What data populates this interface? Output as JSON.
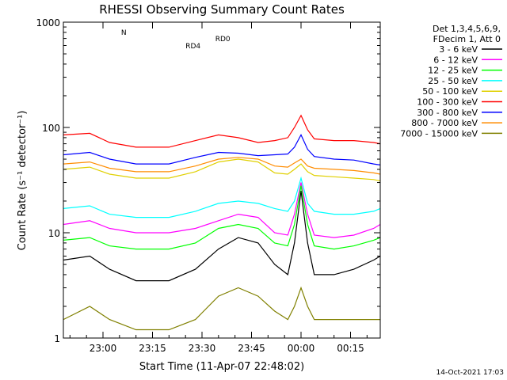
{
  "chart_data": {
    "type": "line",
    "title": "RHESSI Observing Summary Count Rates",
    "xlabel": "Start Time (11-Apr-07 22:48:02)",
    "ylabel": "Count Rate (s⁻¹ detector⁻¹)",
    "y_scale": "log",
    "ylim": [
      1,
      1000
    ],
    "x_units": "minutes after 22:48:02",
    "xlim": [
      0,
      96
    ],
    "x_ticks": [
      {
        "t": 12,
        "label": "23:00"
      },
      {
        "t": 27,
        "label": "23:15"
      },
      {
        "t": 42,
        "label": "23:30"
      },
      {
        "t": 57,
        "label": "23:45"
      },
      {
        "t": 72,
        "label": "00:00"
      },
      {
        "t": 87,
        "label": "00:15"
      }
    ],
    "y_ticks": [
      {
        "v": 1,
        "label": "1"
      },
      {
        "v": 10,
        "label": "10"
      },
      {
        "v": 100,
        "label": "100"
      },
      {
        "v": 1000,
        "label": "1000"
      }
    ],
    "legend_header": [
      "Det 1,3,4,5,6,9,",
      "FDecim 1, Att 0"
    ],
    "legend_position": "right",
    "series": [
      {
        "name": "3 - 6 keV",
        "color": "#000000",
        "x": [
          0,
          8,
          14,
          22,
          32,
          40,
          47,
          53,
          59,
          64,
          68,
          70,
          72,
          74,
          76,
          82,
          88,
          94,
          96
        ],
        "y": [
          5.5,
          6,
          4.5,
          3.5,
          3.5,
          4.5,
          7,
          9,
          8,
          5,
          4,
          8,
          25,
          8,
          4,
          4,
          4.5,
          5.5,
          6
        ]
      },
      {
        "name": "6 - 12 keV",
        "color": "#ff00ff",
        "x": [
          0,
          8,
          14,
          22,
          32,
          40,
          47,
          53,
          59,
          64,
          68,
          70,
          72,
          74,
          76,
          82,
          88,
          94,
          96
        ],
        "y": [
          12,
          13,
          11,
          10,
          10,
          11,
          13,
          15,
          14,
          10,
          9.5,
          15,
          30,
          15,
          9.5,
          9,
          9.5,
          11,
          12
        ]
      },
      {
        "name": "12 - 25 keV",
        "color": "#00ff00",
        "x": [
          0,
          8,
          14,
          22,
          32,
          40,
          47,
          53,
          59,
          64,
          68,
          70,
          72,
          74,
          76,
          82,
          88,
          94,
          96
        ],
        "y": [
          8.5,
          9,
          7.5,
          7,
          7,
          8,
          11,
          12,
          11,
          8,
          7.5,
          12,
          28,
          12,
          7.5,
          7,
          7.5,
          8.5,
          9
        ]
      },
      {
        "name": "25 - 50 keV",
        "color": "#00ffff",
        "x": [
          0,
          8,
          14,
          22,
          32,
          40,
          47,
          53,
          59,
          64,
          68,
          70,
          72,
          74,
          76,
          82,
          88,
          94,
          96
        ],
        "y": [
          17,
          18,
          15,
          14,
          14,
          16,
          19,
          20,
          19,
          17,
          16,
          20,
          33,
          19,
          16,
          15,
          15,
          16,
          17
        ]
      },
      {
        "name": "50 - 100 keV",
        "color": "#e0d000",
        "x": [
          0,
          8,
          14,
          22,
          32,
          40,
          47,
          53,
          59,
          64,
          68,
          70,
          72,
          74,
          76,
          82,
          88,
          94,
          96
        ],
        "y": [
          40,
          42,
          36,
          33,
          33,
          38,
          47,
          50,
          47,
          37,
          36,
          40,
          45,
          38,
          35,
          34,
          33,
          32,
          31
        ]
      },
      {
        "name": "100 - 300 keV",
        "color": "#ff0000",
        "x": [
          0,
          8,
          14,
          22,
          32,
          40,
          47,
          53,
          59,
          64,
          68,
          70,
          72,
          74,
          76,
          82,
          88,
          94,
          96
        ],
        "y": [
          85,
          88,
          72,
          65,
          65,
          75,
          85,
          80,
          72,
          75,
          80,
          100,
          130,
          95,
          78,
          75,
          75,
          72,
          70
        ]
      },
      {
        "name": "300 - 800 keV",
        "color": "#0000ff",
        "x": [
          0,
          8,
          14,
          22,
          32,
          40,
          47,
          53,
          59,
          64,
          68,
          70,
          72,
          74,
          76,
          82,
          88,
          94,
          96
        ],
        "y": [
          55,
          58,
          50,
          45,
          45,
          52,
          58,
          57,
          54,
          55,
          56,
          65,
          85,
          62,
          53,
          50,
          49,
          45,
          44
        ]
      },
      {
        "name": "800 - 7000 keV",
        "color": "#ff8c00",
        "x": [
          0,
          8,
          14,
          22,
          32,
          40,
          47,
          53,
          59,
          64,
          68,
          70,
          72,
          74,
          76,
          82,
          88,
          94,
          96
        ],
        "y": [
          45,
          47,
          41,
          38,
          38,
          43,
          50,
          52,
          50,
          43,
          42,
          46,
          50,
          43,
          41,
          40,
          39,
          37,
          36
        ]
      },
      {
        "name": "7000 - 15000 keV",
        "color": "#808000",
        "x": [
          0,
          8,
          14,
          22,
          32,
          40,
          47,
          53,
          59,
          64,
          68,
          70,
          72,
          74,
          76,
          82,
          88,
          94,
          96
        ],
        "y": [
          1.5,
          2,
          1.5,
          1.2,
          1.2,
          1.5,
          2.5,
          3,
          2.5,
          1.8,
          1.5,
          2,
          3,
          2,
          1.5,
          1.5,
          1.5,
          1.5,
          1.5
        ]
      }
    ],
    "annotations": [
      {
        "text": "N",
        "t": 17.5,
        "series_color": "#00ffff"
      },
      {
        "text": "RD0",
        "t": 46,
        "series_color": "#008000"
      },
      {
        "text": "RD4",
        "t": 37,
        "series_color": "#008000"
      }
    ],
    "timestamp": "14-Oct-2021 17:03"
  }
}
